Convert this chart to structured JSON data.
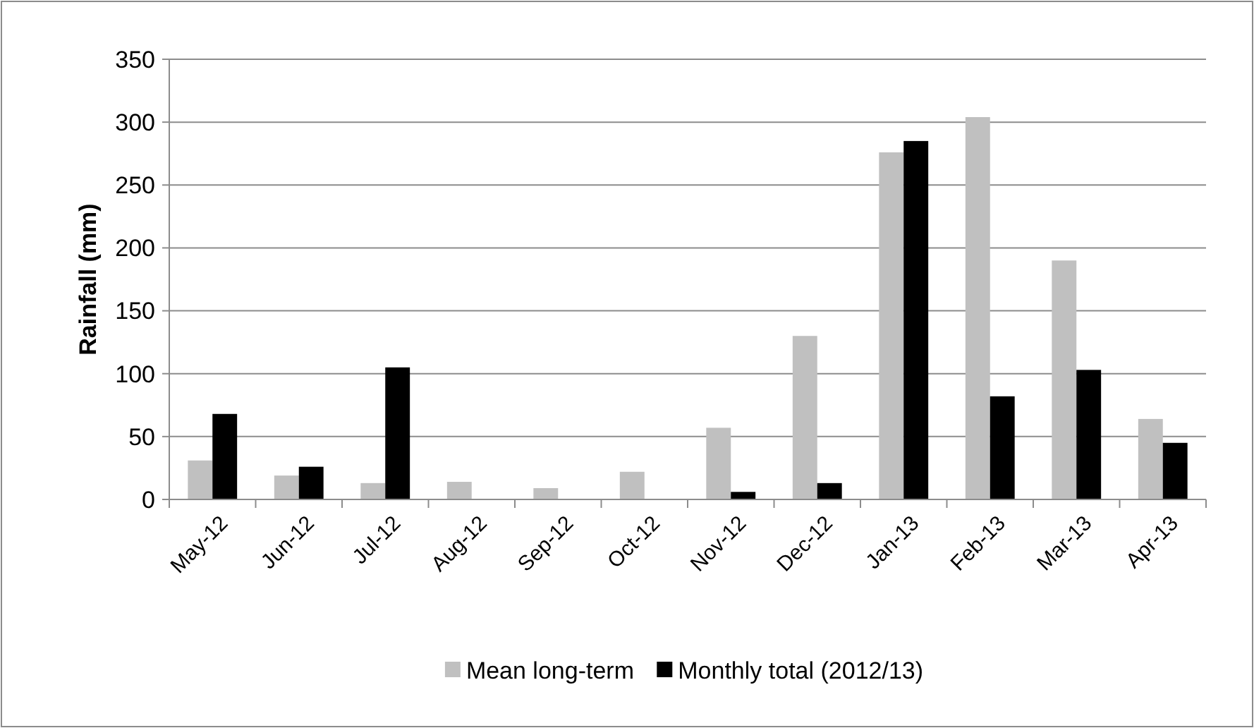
{
  "chart_data": {
    "type": "bar",
    "ylabel": "Rainfall (mm)",
    "categories": [
      "May-12",
      "Jun-12",
      "Jul-12",
      "Aug-12",
      "Sep-12",
      "Oct-12",
      "Nov-12",
      "Dec-12",
      "Jan-13",
      "Feb-13",
      "Mar-13",
      "Apr-13"
    ],
    "series": [
      {
        "name": "Mean long-term",
        "color": "#c0c0c0",
        "values": [
          31,
          19,
          13,
          14,
          9,
          22,
          57,
          130,
          276,
          304,
          190,
          64
        ]
      },
      {
        "name": "Monthly total (2012/13)",
        "color": "#000000",
        "values": [
          68,
          26,
          105,
          0,
          0,
          0,
          6,
          13,
          285,
          82,
          103,
          45
        ]
      }
    ],
    "ylim": [
      0,
      350
    ],
    "yticks": [
      0,
      50,
      100,
      150,
      200,
      250,
      300,
      350
    ],
    "grid": "y",
    "legend": "bottom"
  }
}
